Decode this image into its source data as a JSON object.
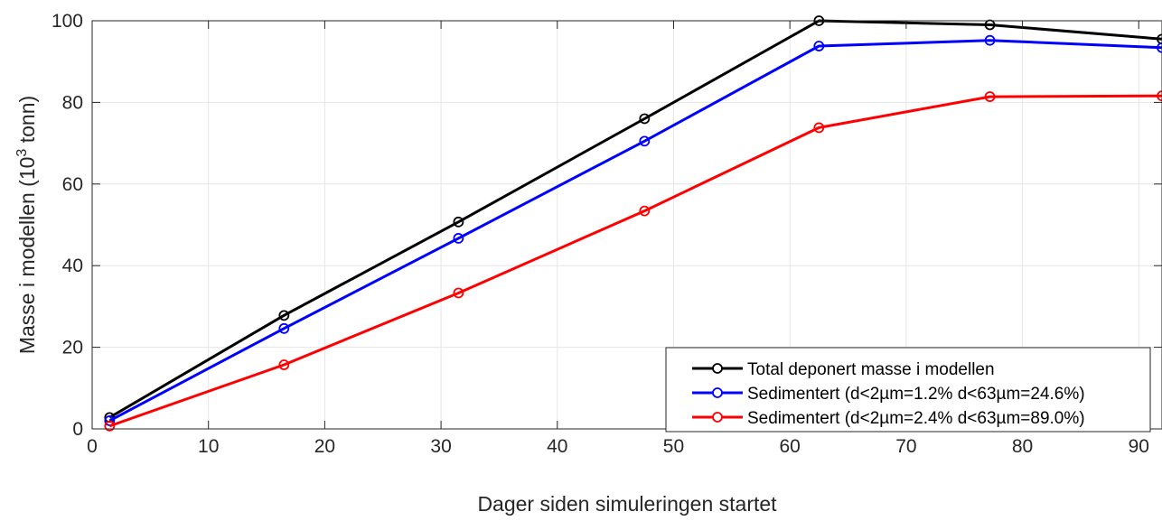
{
  "chart_data": {
    "type": "line",
    "title": "",
    "xlabel": "Dager siden simuleringen startet",
    "ylabel": "Masse i modellen (10",
    "ylabel_sup": "3",
    "ylabel_suffix": " tonn)",
    "xlim": [
      0,
      92
    ],
    "ylim": [
      0,
      100
    ],
    "xticks": [
      0,
      10,
      20,
      30,
      40,
      50,
      60,
      70,
      80,
      90
    ],
    "yticks": [
      0,
      20,
      40,
      60,
      80,
      100
    ],
    "grid": true,
    "legend_position": "bottom-right",
    "x": [
      1.5,
      16.5,
      31.5,
      47.5,
      62.5,
      77.2,
      92
    ],
    "series": [
      {
        "name": "Total deponert masse i modellen",
        "color": "#000000",
        "values": [
          2.8,
          27.8,
          50.7,
          76.0,
          100.0,
          99.0,
          95.5
        ]
      },
      {
        "name": "Sedimentert (d<2µm=1.2% d<63µm=24.6%)",
        "color": "#0000ff",
        "values": [
          2.0,
          24.6,
          46.7,
          70.5,
          93.8,
          95.2,
          93.4
        ]
      },
      {
        "name": "Sedimentert (d<2µm=2.4% d<63µm=89.0%)",
        "color": "#ff0000",
        "values": [
          0.7,
          15.7,
          33.3,
          53.4,
          73.8,
          81.4,
          81.6
        ]
      }
    ]
  }
}
